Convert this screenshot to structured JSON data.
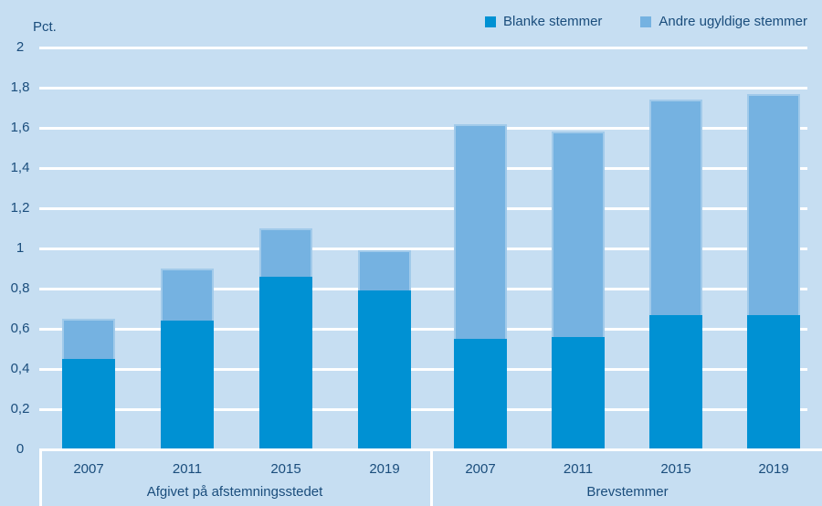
{
  "colors": {
    "background": "#c6def2",
    "grid": "#ffffff",
    "text": "#1a4d7c",
    "series_blanke": "#0091d3",
    "series_andre": "#75b2e1"
  },
  "legend": {
    "items": [
      {
        "label": "Blanke stemmer",
        "color": "#0091d3"
      },
      {
        "label": "Andre ugyldige stemmer",
        "color": "#75b2e1"
      }
    ]
  },
  "y_axis": {
    "unit_label": "Pct.",
    "tick_labels": [
      "0",
      "0,2",
      "0,4",
      "0,6",
      "0,8",
      "1",
      "1,2",
      "1,4",
      "1,6",
      "1,8",
      "2"
    ]
  },
  "chart_data": {
    "type": "bar",
    "stacked": true,
    "title": "",
    "ylabel": "Pct.",
    "ylim": [
      0,
      2
    ],
    "ytick_step": 0.2,
    "grid": true,
    "legend_position": "top-right",
    "groups": [
      {
        "label": "Afgivet på afstemningsstedet",
        "categories": [
          "2007",
          "2011",
          "2015",
          "2019"
        ],
        "series": [
          {
            "name": "Blanke stemmer",
            "color": "#0091d3",
            "values": [
              0.45,
              0.64,
              0.86,
              0.79
            ]
          },
          {
            "name": "Andre ugyldige stemmer",
            "color": "#75b2e1",
            "values": [
              0.2,
              0.26,
              0.24,
              0.2
            ]
          }
        ],
        "totals": [
          0.65,
          0.9,
          1.1,
          0.99
        ]
      },
      {
        "label": "Brevstemmer",
        "categories": [
          "2007",
          "2011",
          "2015",
          "2019"
        ],
        "series": [
          {
            "name": "Blanke stemmer",
            "color": "#0091d3",
            "values": [
              0.55,
              0.56,
              0.67,
              0.67
            ]
          },
          {
            "name": "Andre ugyldige stemmer",
            "color": "#75b2e1",
            "values": [
              1.07,
              1.02,
              1.07,
              1.1
            ]
          }
        ],
        "totals": [
          1.62,
          1.58,
          1.74,
          1.77
        ]
      }
    ]
  }
}
